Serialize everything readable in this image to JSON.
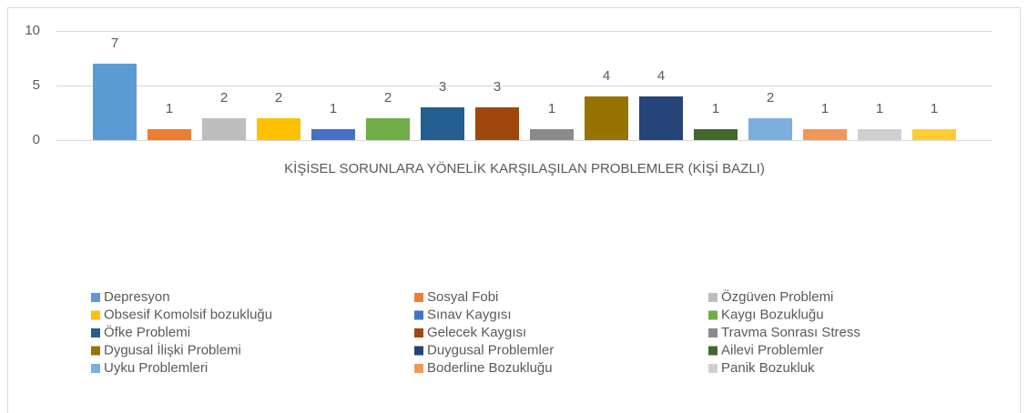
{
  "chart_data": {
    "type": "bar",
    "categories": [
      "KİŞİSEL SORUNLARA YÖNELİK KARŞILAŞILAN PROBLEMLER (KİŞİ BAZLI)"
    ],
    "series": [
      {
        "name": "Depresyon",
        "color": "#5b9bd5",
        "values": [
          7
        ]
      },
      {
        "name": "Sosyal Fobi",
        "color": "#ed7d31",
        "values": [
          1
        ]
      },
      {
        "name": "Özgüven Problemi",
        "color": "#bdbdbd",
        "values": [
          2
        ]
      },
      {
        "name": "Obsesif Komolsif bozukluğu",
        "color": "#ffc000",
        "values": [
          2
        ]
      },
      {
        "name": "Sınav Kaygısı",
        "color": "#4472c4",
        "values": [
          1
        ]
      },
      {
        "name": "Kaygı Bozukluğu",
        "color": "#70ad47",
        "values": [
          2
        ]
      },
      {
        "name": "Öfke Problemi",
        "color": "#255e91",
        "values": [
          3
        ]
      },
      {
        "name": "Gelecek Kaygısı",
        "color": "#9e480e",
        "values": [
          3
        ]
      },
      {
        "name": "Travma Sonrası Stress",
        "color": "#8a8a8a",
        "values": [
          1
        ]
      },
      {
        "name": "Dygusal İlişki Problemi",
        "color": "#997300",
        "values": [
          4
        ]
      },
      {
        "name": "Duygusal Problemler",
        "color": "#264478",
        "values": [
          4
        ]
      },
      {
        "name": "Ailevi Problemler",
        "color": "#43682b",
        "values": [
          1
        ]
      },
      {
        "name": "Uyku Problemleri",
        "color": "#7cafdd",
        "values": [
          2
        ]
      },
      {
        "name": "Boderline Bozukluğu",
        "color": "#f1975a",
        "values": [
          1
        ]
      },
      {
        "name": "Panik Bozukluk",
        "color": "#cfcfcf",
        "values": [
          1
        ]
      },
      {
        "name": null,
        "color": "#ffcd33",
        "values": [
          1
        ]
      }
    ],
    "ylim": [
      0,
      10
    ],
    "yticks": [
      0,
      5,
      10
    ],
    "grid": true,
    "legend": "bottom"
  }
}
